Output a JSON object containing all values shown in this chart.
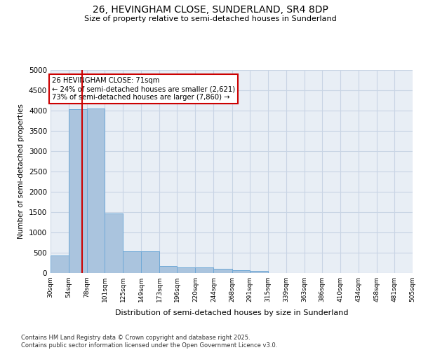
{
  "title_line1": "26, HEVINGHAM CLOSE, SUNDERLAND, SR4 8DP",
  "title_line2": "Size of property relative to semi-detached houses in Sunderland",
  "xlabel": "Distribution of semi-detached houses by size in Sunderland",
  "ylabel": "Number of semi-detached properties",
  "footnote": "Contains HM Land Registry data © Crown copyright and database right 2025.\nContains public sector information licensed under the Open Government Licence v3.0.",
  "annotation_title": "26 HEVINGHAM CLOSE: 71sqm",
  "annotation_line2": "← 24% of semi-detached houses are smaller (2,621)",
  "annotation_line3": "73% of semi-detached houses are larger (7,860) →",
  "subject_value": 71,
  "bar_edges": [
    30,
    54,
    78,
    101,
    125,
    149,
    173,
    196,
    220,
    244,
    268,
    291,
    315,
    339,
    363,
    386,
    410,
    434,
    458,
    481,
    505
  ],
  "bar_heights": [
    430,
    4040,
    4060,
    1460,
    540,
    540,
    180,
    130,
    130,
    100,
    70,
    50,
    0,
    0,
    0,
    0,
    0,
    0,
    0,
    0
  ],
  "tick_labels": [
    "30sqm",
    "54sqm",
    "78sqm",
    "101sqm",
    "125sqm",
    "149sqm",
    "173sqm",
    "196sqm",
    "220sqm",
    "244sqm",
    "268sqm",
    "291sqm",
    "315sqm",
    "339sqm",
    "363sqm",
    "386sqm",
    "410sqm",
    "434sqm",
    "458sqm",
    "481sqm",
    "505sqm"
  ],
  "bar_color": "#aac4de",
  "bar_edge_color": "#6fa8d6",
  "subject_line_color": "#cc0000",
  "annotation_box_color": "#cc0000",
  "background_color": "#ffffff",
  "plot_bg_color": "#e8eef5",
  "grid_color": "#c8d4e4",
  "ylim": [
    0,
    5000
  ],
  "yticks": [
    0,
    500,
    1000,
    1500,
    2000,
    2500,
    3000,
    3500,
    4000,
    4500,
    5000
  ]
}
